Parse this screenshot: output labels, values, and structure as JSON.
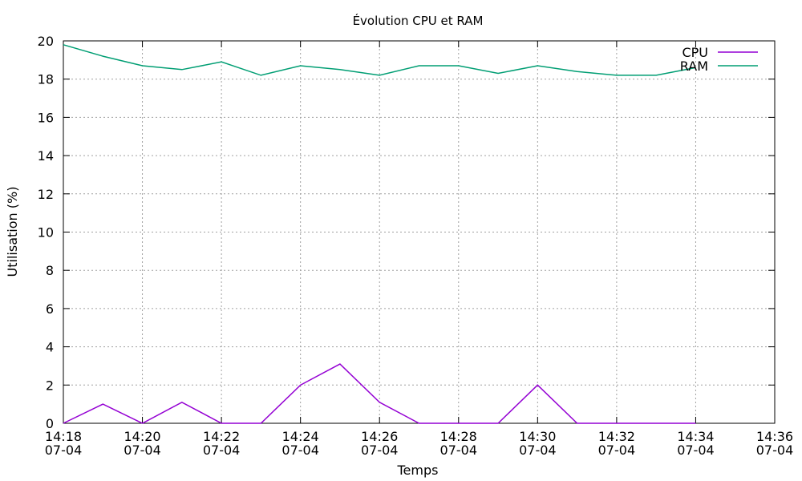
{
  "chart_data": {
    "type": "line",
    "title": "Évolution CPU et RAM",
    "xlabel": "Temps",
    "ylabel": "Utilisation (%)",
    "x_ticks": [
      {
        "time": "14:18",
        "date": "07-04"
      },
      {
        "time": "14:20",
        "date": "07-04"
      },
      {
        "time": "14:22",
        "date": "07-04"
      },
      {
        "time": "14:24",
        "date": "07-04"
      },
      {
        "time": "14:26",
        "date": "07-04"
      },
      {
        "time": "14:28",
        "date": "07-04"
      },
      {
        "time": "14:30",
        "date": "07-04"
      },
      {
        "time": "14:32",
        "date": "07-04"
      },
      {
        "time": "14:34",
        "date": "07-04"
      },
      {
        "time": "14:36",
        "date": "07-04"
      }
    ],
    "xlim": [
      "14:18",
      "14:36"
    ],
    "y_ticks": [
      0,
      2,
      4,
      6,
      8,
      10,
      12,
      14,
      16,
      18,
      20
    ],
    "ylim": [
      0,
      20
    ],
    "grid": true,
    "legend_position": "top-right",
    "x": [
      "14:18",
      "14:19",
      "14:20",
      "14:21",
      "14:22",
      "14:23",
      "14:24",
      "14:25",
      "14:26",
      "14:27",
      "14:28",
      "14:29",
      "14:30",
      "14:31",
      "14:32",
      "14:33",
      "14:34"
    ],
    "series": [
      {
        "name": "CPU",
        "color": "#9400d3",
        "values": [
          0,
          1.0,
          0,
          1.1,
          0,
          0,
          2.0,
          3.1,
          1.1,
          0,
          0,
          0,
          2.0,
          0,
          0,
          0,
          0
        ]
      },
      {
        "name": "RAM",
        "color": "#009e73",
        "values": [
          19.8,
          19.2,
          18.7,
          18.5,
          18.9,
          18.2,
          18.7,
          18.5,
          18.2,
          18.7,
          18.7,
          18.3,
          18.7,
          18.4,
          18.2,
          18.2,
          18.6
        ]
      }
    ]
  }
}
